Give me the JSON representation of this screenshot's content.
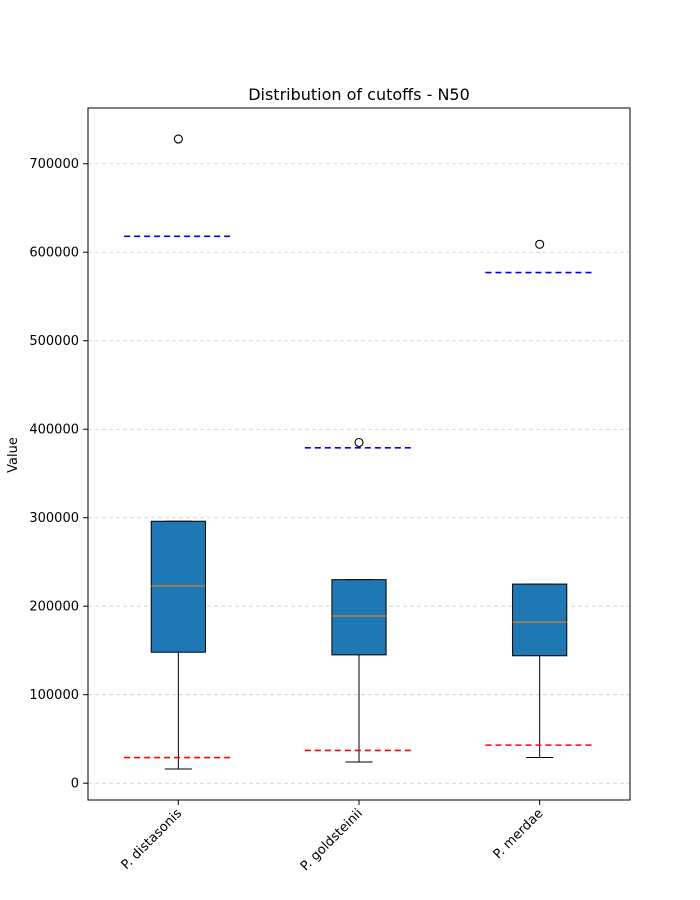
{
  "chart_data": {
    "type": "box",
    "title": "Distribution of cutoffs - N50",
    "xlabel": "",
    "ylabel": "Value",
    "ylim": [
      -19000,
      763000
    ],
    "yticks": [
      0,
      100000,
      200000,
      300000,
      400000,
      500000,
      600000,
      700000
    ],
    "ytick_labels": [
      "0",
      "100000",
      "200000",
      "300000",
      "400000",
      "500000",
      "600000",
      "700000"
    ],
    "grid": "y-dashed",
    "categories": [
      "P. distasonis",
      "P. goldsteinii",
      "P. merdae"
    ],
    "boxes": [
      {
        "whisker_low": 16000,
        "q1": 148000,
        "median": 223000,
        "q3": 296000,
        "whisker_high": 296000,
        "outliers": [
          728000
        ],
        "lower_cutoff": 29000,
        "upper_cutoff": 618000
      },
      {
        "whisker_low": 24000,
        "q1": 145000,
        "median": 189000,
        "q3": 230000,
        "whisker_high": 230000,
        "outliers": [
          385000
        ],
        "lower_cutoff": 37000,
        "upper_cutoff": 379000
      },
      {
        "whisker_low": 29000,
        "q1": 144000,
        "median": 182000,
        "q3": 225000,
        "whisker_high": 225000,
        "outliers": [
          609000
        ],
        "lower_cutoff": 43000,
        "upper_cutoff": 577000
      }
    ],
    "colors": {
      "box_fill": "#1f77b4",
      "median": "#ff7f0e",
      "lower_cutoff": "#ff0000",
      "upper_cutoff": "#0000ff",
      "grid": "#cccccc"
    }
  }
}
